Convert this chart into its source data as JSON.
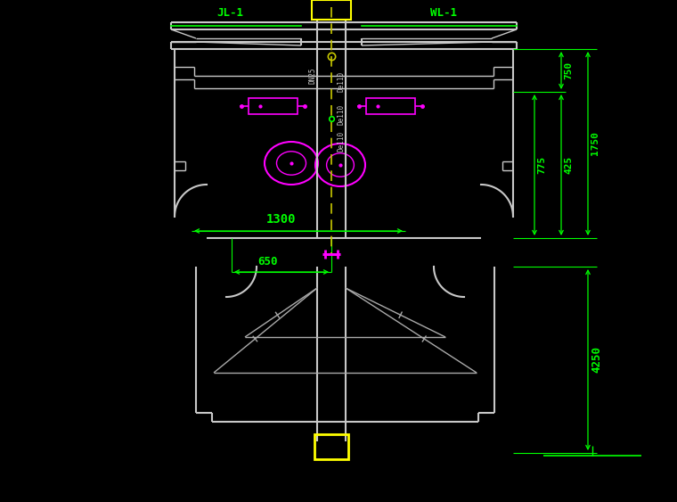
{
  "bg_color": "#000000",
  "white_color": "#C8C8C8",
  "green_color": "#00FF00",
  "yellow_color": "#FFFF00",
  "magenta_color": "#FF00FF",
  "gray_color": "#AAAAAA",
  "olive_color": "#C8C800",
  "labels": {
    "JL1": "JL-1",
    "WL1": "WL-1",
    "DN25": "DN25",
    "De110_1": "De110",
    "De110_2": "De110",
    "De110_3": "De110",
    "d650": "650",
    "d1300": "1300",
    "d750": "750",
    "d775": "775",
    "d425": "425",
    "d1750": "1750",
    "d4250": "4250"
  },
  "figsize": [
    7.6,
    5.63
  ],
  "dpi": 100
}
